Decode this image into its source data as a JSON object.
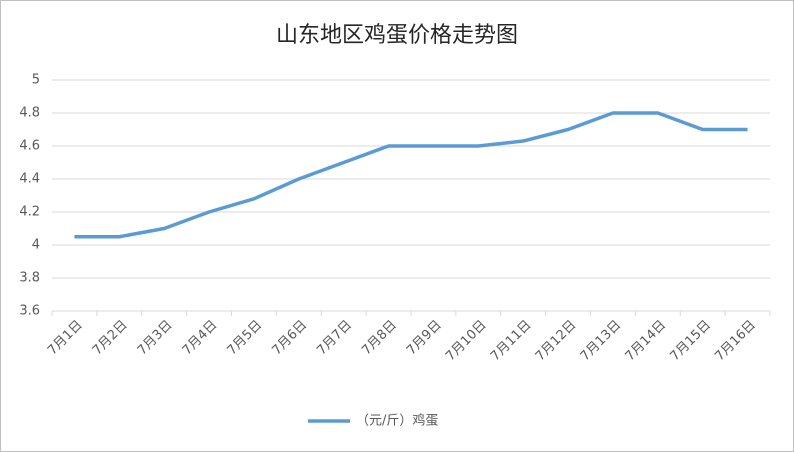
{
  "chart_data": {
    "type": "line",
    "title": "山东地区鸡蛋价格走势图",
    "categories": [
      "7月1日",
      "7月2日",
      "7月3日",
      "7月4日",
      "7月5日",
      "7月6日",
      "7月7日",
      "7月8日",
      "7月9日",
      "7月10日",
      "7月11日",
      "7月12日",
      "7月13日",
      "7月14日",
      "7月15日",
      "7月16日"
    ],
    "series": [
      {
        "name": "（元/斤）鸡蛋",
        "color": "#5b9bd5",
        "values": [
          4.05,
          4.05,
          4.1,
          4.2,
          4.28,
          4.4,
          4.5,
          4.6,
          4.6,
          4.6,
          4.63,
          4.7,
          4.8,
          4.8,
          4.7,
          4.7
        ]
      }
    ],
    "ylim": [
      3.6,
      5
    ],
    "yticks": [
      3.6,
      3.8,
      4,
      4.2,
      4.4,
      4.6,
      4.8,
      5
    ],
    "grid": true,
    "legend": "bottom"
  }
}
